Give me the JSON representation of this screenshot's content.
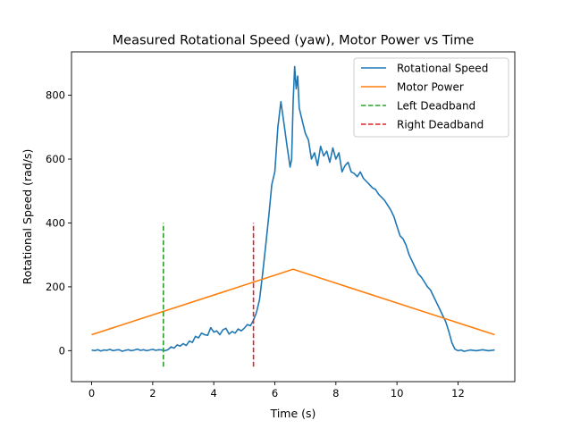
{
  "chart_data": {
    "type": "line",
    "title": "Measured Rotational Speed (yaw), Motor Power vs Time",
    "xlabel": "Time (s)",
    "ylabel": "Rotational Speed (rad/s)",
    "xlim": [
      -0.66,
      13.86
    ],
    "ylim": [
      -97,
      936
    ],
    "xticks": [
      0,
      2,
      4,
      6,
      8,
      10,
      12
    ],
    "xtick_labels": [
      "0",
      "2",
      "4",
      "6",
      "8",
      "10",
      "12"
    ],
    "yticks": [
      0,
      200,
      400,
      600,
      800
    ],
    "ytick_labels": [
      "0",
      "200",
      "400",
      "600",
      "800"
    ],
    "grid": false,
    "legend_position": "top-right",
    "series": [
      {
        "name": "Rotational Speed",
        "kind": "line",
        "color": "#1f77b4",
        "x": [
          0.0,
          0.1,
          0.2,
          0.3,
          0.4,
          0.5,
          0.6,
          0.7,
          0.8,
          0.9,
          1.0,
          1.1,
          1.2,
          1.3,
          1.4,
          1.5,
          1.6,
          1.7,
          1.8,
          1.9,
          2.0,
          2.1,
          2.2,
          2.3,
          2.4,
          2.5,
          2.6,
          2.7,
          2.8,
          2.9,
          3.0,
          3.1,
          3.2,
          3.3,
          3.4,
          3.5,
          3.6,
          3.7,
          3.8,
          3.9,
          4.0,
          4.1,
          4.2,
          4.3,
          4.4,
          4.5,
          4.6,
          4.7,
          4.8,
          4.9,
          5.0,
          5.1,
          5.2,
          5.3,
          5.4,
          5.5,
          5.6,
          5.7,
          5.8,
          5.9,
          6.0,
          6.1,
          6.2,
          6.3,
          6.4,
          6.5,
          6.55,
          6.6,
          6.65,
          6.7,
          6.75,
          6.8,
          6.9,
          7.0,
          7.1,
          7.2,
          7.3,
          7.4,
          7.5,
          7.6,
          7.7,
          7.8,
          7.9,
          8.0,
          8.1,
          8.2,
          8.3,
          8.4,
          8.5,
          8.6,
          8.7,
          8.8,
          8.9,
          9.0,
          9.1,
          9.2,
          9.3,
          9.4,
          9.5,
          9.6,
          9.7,
          9.8,
          9.9,
          10.0,
          10.1,
          10.2,
          10.3,
          10.4,
          10.5,
          10.6,
          10.7,
          10.8,
          10.9,
          11.0,
          11.1,
          11.2,
          11.3,
          11.4,
          11.5,
          11.6,
          11.7,
          11.8,
          11.9,
          12.0,
          12.1,
          12.2,
          12.4,
          12.6,
          12.8,
          13.0,
          13.2
        ],
        "y": [
          2,
          0,
          3,
          -1,
          2,
          1,
          4,
          0,
          2,
          3,
          -2,
          1,
          3,
          0,
          2,
          5,
          1,
          3,
          0,
          2,
          4,
          1,
          3,
          2,
          0,
          3,
          12,
          8,
          18,
          14,
          22,
          16,
          30,
          26,
          45,
          40,
          55,
          50,
          48,
          72,
          58,
          62,
          50,
          65,
          70,
          52,
          60,
          55,
          68,
          62,
          70,
          82,
          78,
          95,
          120,
          160,
          240,
          330,
          420,
          520,
          560,
          700,
          780,
          710,
          640,
          575,
          600,
          780,
          890,
          820,
          860,
          760,
          720,
          680,
          660,
          600,
          620,
          580,
          640,
          610,
          625,
          590,
          635,
          600,
          620,
          560,
          580,
          590,
          560,
          555,
          545,
          560,
          540,
          530,
          520,
          510,
          505,
          490,
          480,
          470,
          455,
          440,
          420,
          390,
          360,
          350,
          330,
          300,
          280,
          260,
          240,
          230,
          215,
          200,
          190,
          170,
          150,
          130,
          110,
          90,
          60,
          25,
          5,
          0,
          2,
          -2,
          2,
          0,
          3,
          0,
          2
        ]
      },
      {
        "name": "Motor Power",
        "kind": "line",
        "color": "#ff7f0e",
        "x": [
          0.0,
          6.6,
          13.2
        ],
        "y": [
          50,
          255,
          50
        ]
      },
      {
        "name": "Left Deadband",
        "kind": "vline-dashed",
        "color": "#2ca02c",
        "x": [
          2.35,
          2.35
        ],
        "y": [
          -50,
          400
        ]
      },
      {
        "name": "Right Deadband",
        "kind": "vline-dashed",
        "color": "#d62728",
        "x": [
          5.3,
          5.3
        ],
        "y": [
          -50,
          400
        ]
      }
    ]
  }
}
